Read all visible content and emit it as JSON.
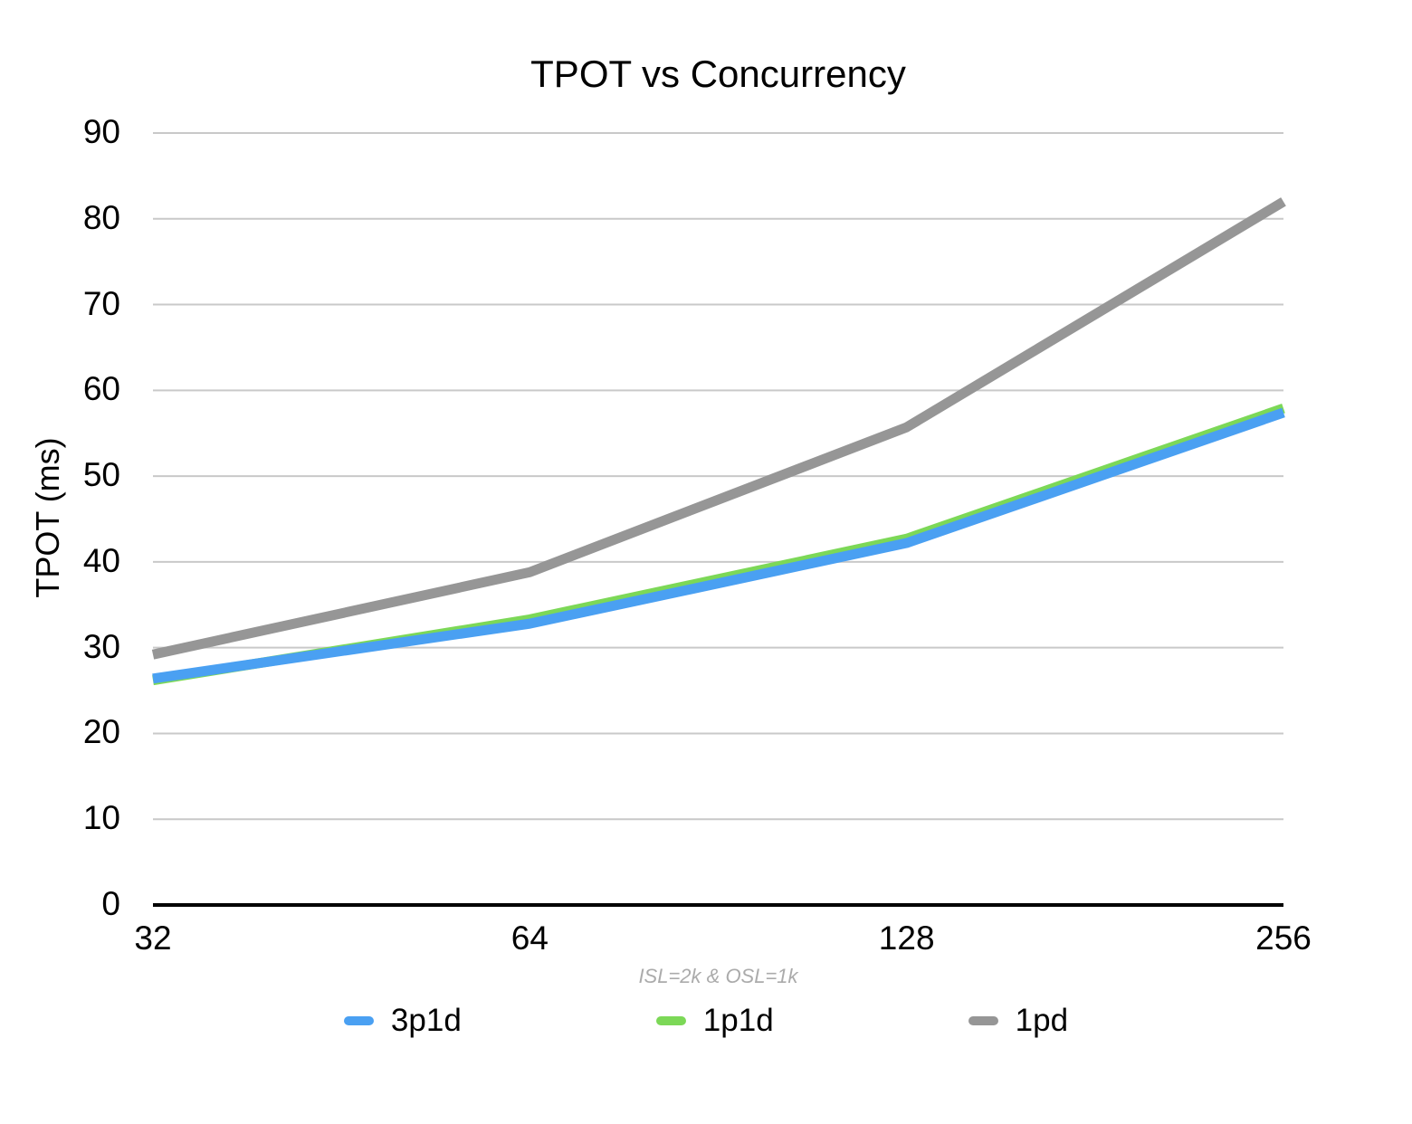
{
  "chart_data": {
    "type": "line",
    "title": "TPOT vs Concurrency",
    "ylabel": "TPOT (ms)",
    "xlabel": "",
    "caption": "ISL=2k & OSL=1k",
    "categories": [
      "32",
      "64",
      "128",
      "256"
    ],
    "series": [
      {
        "name": "3p1d",
        "color": "#4AA0F2",
        "values": [
          26.4,
          32.8,
          42.2,
          57.4
        ]
      },
      {
        "name": "1p1d",
        "color": "#7CD857",
        "values": [
          26.2,
          33.3,
          42.7,
          57.9
        ]
      },
      {
        "name": "1pd",
        "color": "#969696",
        "values": [
          29.2,
          38.8,
          55.7,
          82.0
        ]
      }
    ],
    "draw_order": [
      "1p1d",
      "3p1d",
      "1pd"
    ],
    "ylim": [
      0,
      90
    ],
    "ytick_step": 10,
    "yticks": [
      0,
      10,
      20,
      30,
      40,
      50,
      60,
      70,
      80,
      90
    ],
    "grid": true,
    "legend_position": "bottom",
    "colors": {
      "grid": "#C9C9C9",
      "axis": "#000000",
      "tick_text": "#000000",
      "caption_text": "#ABABAB"
    }
  }
}
